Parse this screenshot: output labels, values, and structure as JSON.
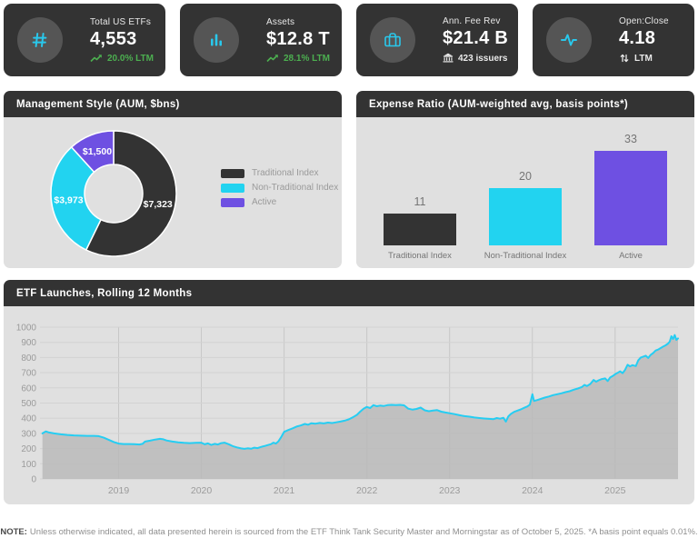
{
  "colors": {
    "card_bg": "#333333",
    "icon_circle_bg": "#555555",
    "accent_cyan": "#29c8ec",
    "positive_green": "#4caf50",
    "panel_header_bg": "#333333",
    "panel_body_bg": "#e0e0e0",
    "series_dark": "#333333",
    "series_cyan": "#22d3f0",
    "series_purple": "#6e50e2"
  },
  "kpi_cards": [
    {
      "icon": "hash-icon",
      "title": "Total US ETFs",
      "value": "4,553",
      "delta_icon": "trending-up-icon",
      "delta_text": "20.0% LTM",
      "delta_color": "#4caf50"
    },
    {
      "icon": "bar-chart-icon",
      "title": "Assets",
      "value": "$12.8 T",
      "delta_icon": "trending-up-icon",
      "delta_text": "28.1% LTM",
      "delta_color": "#4caf50"
    },
    {
      "icon": "briefcase-icon",
      "title": "Ann. Fee Rev",
      "value": "$21.4 B",
      "delta_icon": "bank-icon",
      "delta_text": "423 issuers",
      "delta_color": "#e9e9e9"
    },
    {
      "icon": "activity-icon",
      "title": "Open:Close",
      "value": "4.18",
      "delta_icon": "sort-arrows-icon",
      "delta_text": "LTM",
      "delta_color": "#e9e9e9"
    }
  ],
  "panels": {
    "management_style_title": "Management Style (AUM, $bns)",
    "expense_ratio_title": "Expense Ratio (AUM-weighted avg, basis points*)",
    "launches_title": "ETF Launches, Rolling 12 Months"
  },
  "footer": {
    "note_label": "NOTE:",
    "note_text": "Unless otherwise indicated, all data presented herein is sourced from the ETF Think Tank Security Master and Morningstar as of October 5, 2025. *A basis point equals 0.01%."
  },
  "chart_data": [
    {
      "type": "pie",
      "title": "Management Style (AUM, $bns)",
      "labels": [
        "Traditional Index",
        "Non-Traditional Index",
        "Active"
      ],
      "values": [
        7323,
        3973,
        1500
      ],
      "value_labels": [
        "$7,323",
        "$3,973",
        "$1,500"
      ],
      "colors": [
        "#333333",
        "#22d3f0",
        "#6e50e2"
      ],
      "donut": true,
      "start_angle_deg": 0,
      "direction": "clockwise",
      "legend_position": "right"
    },
    {
      "type": "bar",
      "title": "Expense Ratio (AUM-weighted avg, basis points*)",
      "categories": [
        "Traditional Index",
        "Non-Traditional Index",
        "Active"
      ],
      "values": [
        11,
        20,
        33
      ],
      "colors": [
        "#333333",
        "#22d3f0",
        "#6e50e2"
      ],
      "data_labels": true,
      "ylim": [
        0,
        33
      ]
    },
    {
      "type": "area",
      "title": "ETF Launches, Rolling 12 Months",
      "xlabel": "",
      "ylabel": "",
      "x_tick_labels": [
        "2019",
        "2020",
        "2021",
        "2022",
        "2023",
        "2024",
        "2025"
      ],
      "xlim": [
        2018.05,
        2025.76
      ],
      "ylim": [
        0,
        1000
      ],
      "y_tick_step": 100,
      "grid": true,
      "legend_position": "none",
      "line_color": "#26cdf2",
      "fill_color": "#b8b8b8",
      "points": [
        [
          2018.08,
          300
        ],
        [
          2018.12,
          313
        ],
        [
          2018.16,
          306
        ],
        [
          2018.22,
          300
        ],
        [
          2018.3,
          294
        ],
        [
          2018.38,
          290
        ],
        [
          2018.46,
          287
        ],
        [
          2018.54,
          285
        ],
        [
          2018.62,
          284
        ],
        [
          2018.7,
          284
        ],
        [
          2018.76,
          282
        ],
        [
          2018.82,
          272
        ],
        [
          2018.88,
          258
        ],
        [
          2018.94,
          244
        ],
        [
          2019.0,
          233
        ],
        [
          2019.06,
          230
        ],
        [
          2019.13,
          230
        ],
        [
          2019.19,
          229
        ],
        [
          2019.25,
          227
        ],
        [
          2019.29,
          231
        ],
        [
          2019.32,
          246
        ],
        [
          2019.38,
          252
        ],
        [
          2019.44,
          259
        ],
        [
          2019.5,
          264
        ],
        [
          2019.54,
          261
        ],
        [
          2019.58,
          253
        ],
        [
          2019.65,
          246
        ],
        [
          2019.72,
          241
        ],
        [
          2019.79,
          238
        ],
        [
          2019.86,
          236
        ],
        [
          2019.93,
          238
        ],
        [
          2020.0,
          239
        ],
        [
          2020.04,
          228
        ],
        [
          2020.08,
          234
        ],
        [
          2020.12,
          224
        ],
        [
          2020.16,
          231
        ],
        [
          2020.2,
          227
        ],
        [
          2020.24,
          236
        ],
        [
          2020.28,
          239
        ],
        [
          2020.33,
          229
        ],
        [
          2020.38,
          216
        ],
        [
          2020.43,
          208
        ],
        [
          2020.48,
          201
        ],
        [
          2020.52,
          198
        ],
        [
          2020.56,
          202
        ],
        [
          2020.6,
          199
        ],
        [
          2020.64,
          206
        ],
        [
          2020.68,
          203
        ],
        [
          2020.72,
          211
        ],
        [
          2020.76,
          216
        ],
        [
          2020.8,
          223
        ],
        [
          2020.84,
          229
        ],
        [
          2020.87,
          239
        ],
        [
          2020.9,
          233
        ],
        [
          2020.93,
          247
        ],
        [
          2020.96,
          272
        ],
        [
          2021.0,
          310
        ],
        [
          2021.05,
          322
        ],
        [
          2021.1,
          333
        ],
        [
          2021.15,
          345
        ],
        [
          2021.2,
          352
        ],
        [
          2021.25,
          362
        ],
        [
          2021.29,
          357
        ],
        [
          2021.33,
          367
        ],
        [
          2021.38,
          364
        ],
        [
          2021.43,
          369
        ],
        [
          2021.48,
          366
        ],
        [
          2021.53,
          371
        ],
        [
          2021.58,
          368
        ],
        [
          2021.63,
          373
        ],
        [
          2021.68,
          378
        ],
        [
          2021.73,
          384
        ],
        [
          2021.78,
          392
        ],
        [
          2021.83,
          406
        ],
        [
          2021.88,
          422
        ],
        [
          2021.92,
          444
        ],
        [
          2021.96,
          462
        ],
        [
          2022.0,
          474
        ],
        [
          2022.04,
          467
        ],
        [
          2022.08,
          486
        ],
        [
          2022.12,
          479
        ],
        [
          2022.16,
          483
        ],
        [
          2022.2,
          480
        ],
        [
          2022.25,
          486
        ],
        [
          2022.3,
          488
        ],
        [
          2022.35,
          487
        ],
        [
          2022.4,
          488
        ],
        [
          2022.45,
          485
        ],
        [
          2022.5,
          463
        ],
        [
          2022.55,
          457
        ],
        [
          2022.6,
          461
        ],
        [
          2022.65,
          470
        ],
        [
          2022.7,
          452
        ],
        [
          2022.75,
          446
        ],
        [
          2022.8,
          450
        ],
        [
          2022.85,
          453
        ],
        [
          2022.9,
          443
        ],
        [
          2022.95,
          438
        ],
        [
          2023.0,
          433
        ],
        [
          2023.06,
          427
        ],
        [
          2023.12,
          420
        ],
        [
          2023.18,
          414
        ],
        [
          2023.24,
          410
        ],
        [
          2023.3,
          405
        ],
        [
          2023.36,
          401
        ],
        [
          2023.42,
          398
        ],
        [
          2023.48,
          396
        ],
        [
          2023.53,
          394
        ],
        [
          2023.57,
          401
        ],
        [
          2023.61,
          397
        ],
        [
          2023.65,
          403
        ],
        [
          2023.68,
          378
        ],
        [
          2023.71,
          412
        ],
        [
          2023.74,
          428
        ],
        [
          2023.78,
          442
        ],
        [
          2023.82,
          450
        ],
        [
          2023.86,
          458
        ],
        [
          2023.9,
          468
        ],
        [
          2023.94,
          478
        ],
        [
          2023.97,
          490
        ],
        [
          2024.0,
          558
        ],
        [
          2024.02,
          514
        ],
        [
          2024.06,
          520
        ],
        [
          2024.1,
          527
        ],
        [
          2024.15,
          536
        ],
        [
          2024.2,
          543
        ],
        [
          2024.25,
          552
        ],
        [
          2024.3,
          558
        ],
        [
          2024.35,
          564
        ],
        [
          2024.4,
          572
        ],
        [
          2024.45,
          578
        ],
        [
          2024.5,
          588
        ],
        [
          2024.55,
          596
        ],
        [
          2024.6,
          606
        ],
        [
          2024.63,
          620
        ],
        [
          2024.66,
          612
        ],
        [
          2024.7,
          626
        ],
        [
          2024.74,
          652
        ],
        [
          2024.77,
          641
        ],
        [
          2024.8,
          650
        ],
        [
          2024.84,
          658
        ],
        [
          2024.88,
          662
        ],
        [
          2024.91,
          645
        ],
        [
          2024.94,
          668
        ],
        [
          2024.97,
          678
        ],
        [
          2025.0,
          690
        ],
        [
          2025.03,
          699
        ],
        [
          2025.06,
          709
        ],
        [
          2025.09,
          697
        ],
        [
          2025.12,
          718
        ],
        [
          2025.15,
          752
        ],
        [
          2025.18,
          742
        ],
        [
          2025.21,
          750
        ],
        [
          2025.25,
          744
        ],
        [
          2025.28,
          782
        ],
        [
          2025.31,
          800
        ],
        [
          2025.34,
          806
        ],
        [
          2025.37,
          812
        ],
        [
          2025.4,
          797
        ],
        [
          2025.43,
          818
        ],
        [
          2025.46,
          830
        ],
        [
          2025.49,
          846
        ],
        [
          2025.52,
          852
        ],
        [
          2025.55,
          862
        ],
        [
          2025.58,
          872
        ],
        [
          2025.61,
          880
        ],
        [
          2025.64,
          892
        ],
        [
          2025.66,
          905
        ],
        [
          2025.68,
          940
        ],
        [
          2025.7,
          922
        ],
        [
          2025.72,
          948
        ],
        [
          2025.74,
          916
        ],
        [
          2025.76,
          926
        ]
      ]
    }
  ]
}
